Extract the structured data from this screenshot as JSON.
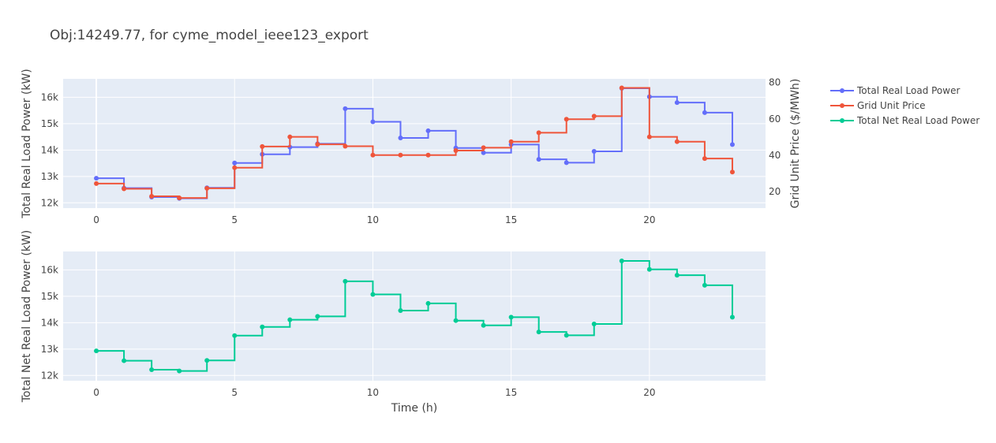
{
  "title": "Obj:14249.77, for cyme_model_ieee123_export",
  "chart_data": [
    {
      "type": "line",
      "line_shape": "step",
      "x": [
        0,
        1,
        2,
        3,
        4,
        5,
        6,
        7,
        8,
        9,
        10,
        11,
        12,
        13,
        14,
        15,
        16,
        17,
        18,
        19,
        20,
        21,
        22,
        23
      ],
      "xlabel": "",
      "xlim": [
        -1.2,
        24.2
      ],
      "x_ticks": [
        0,
        5,
        10,
        15,
        20
      ],
      "ylabel": "Total Real Load Power (kW)",
      "ylim": [
        11800,
        16700
      ],
      "y_ticks": [
        12000,
        13000,
        14000,
        15000,
        16000
      ],
      "y_tick_labels": [
        "12k",
        "13k",
        "14k",
        "15k",
        "16k"
      ],
      "y2label": "Grid Unit Price ($/MWh)",
      "y2lim": [
        11,
        82
      ],
      "y2_ticks": [
        20,
        40,
        60,
        80
      ],
      "y2_tick_labels": [
        "20",
        "40",
        "60",
        "80"
      ],
      "grid": true,
      "series": [
        {
          "name": "Total Real Load Power",
          "axis": "y",
          "color": "#636efa",
          "values": [
            12930,
            12560,
            12220,
            12170,
            12570,
            13510,
            13840,
            14110,
            14240,
            15570,
            15070,
            14460,
            14730,
            14080,
            13900,
            14210,
            13650,
            13520,
            13950,
            16340,
            16020,
            15800,
            15420,
            14210
          ]
        },
        {
          "name": "Grid Unit Price",
          "axis": "y2",
          "color": "#ef553b",
          "values": [
            24.5,
            21.6,
            17.5,
            16.6,
            21.9,
            33.2,
            44.8,
            50.1,
            46.0,
            45.0,
            40.1,
            40.1,
            40.1,
            42.6,
            44.2,
            47.5,
            52.4,
            59.8,
            61.5,
            77.0,
            50.1,
            47.5,
            38.2,
            30.8
          ]
        }
      ]
    },
    {
      "type": "line",
      "line_shape": "step",
      "x": [
        0,
        1,
        2,
        3,
        4,
        5,
        6,
        7,
        8,
        9,
        10,
        11,
        12,
        13,
        14,
        15,
        16,
        17,
        18,
        19,
        20,
        21,
        22,
        23
      ],
      "xlabel": "Time (h)",
      "xlim": [
        -1.2,
        24.2
      ],
      "x_ticks": [
        0,
        5,
        10,
        15,
        20
      ],
      "ylabel": "Total Net Real Load Power (kW)",
      "ylim": [
        11800,
        16700
      ],
      "y_ticks": [
        12000,
        13000,
        14000,
        15000,
        16000
      ],
      "y_tick_labels": [
        "12k",
        "13k",
        "14k",
        "15k",
        "16k"
      ],
      "grid": true,
      "series": [
        {
          "name": "Total Net Real Load Power",
          "axis": "y",
          "color": "#00cc96",
          "values": [
            12930,
            12560,
            12220,
            12170,
            12570,
            13510,
            13840,
            14110,
            14240,
            15570,
            15070,
            14460,
            14730,
            14080,
            13900,
            14210,
            13650,
            13520,
            13950,
            16340,
            16020,
            15800,
            15420,
            14210
          ]
        }
      ]
    }
  ],
  "legend": {
    "placement": "right",
    "items": [
      {
        "name": "Total Real Load Power",
        "color": "#636efa"
      },
      {
        "name": "Grid Unit Price",
        "color": "#ef553b"
      },
      {
        "name": "Total Net Real Load Power",
        "color": "#00cc96"
      }
    ]
  },
  "colors": {
    "plot_bg": "#e5ecf6",
    "grid": "#ffffff",
    "text": "#444444"
  }
}
